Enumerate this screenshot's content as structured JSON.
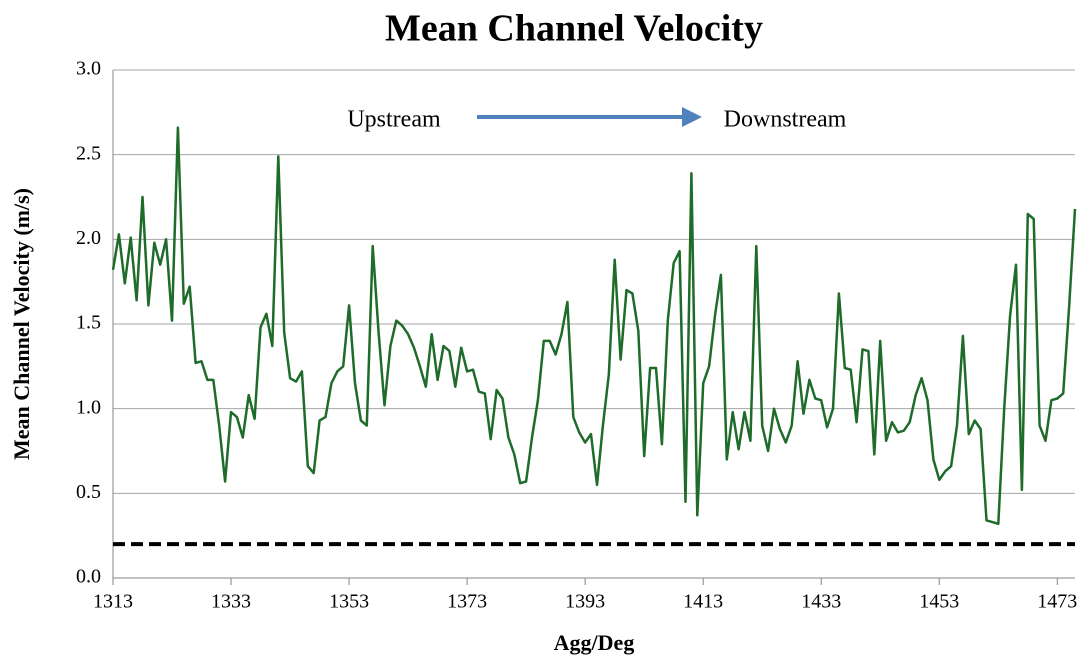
{
  "chart_data": {
    "type": "line",
    "title": "Mean Channel Velocity",
    "xlabel": "Agg/Deg",
    "ylabel": "Mean Channel Velocity (m/s)",
    "annotations": [
      "Upstream",
      "Downstream"
    ],
    "xlim": [
      1313,
      1476
    ],
    "ylim": [
      0,
      3
    ],
    "xticks": [
      1313,
      1333,
      1353,
      1373,
      1393,
      1413,
      1433,
      1453,
      1473
    ],
    "yticks": [
      {
        "value": 0,
        "label": "0.0"
      },
      {
        "value": 0.5,
        "label": "0.5"
      },
      {
        "value": 1,
        "label": "1.0"
      },
      {
        "value": 1.5,
        "label": "1.5"
      },
      {
        "value": 2,
        "label": "2.0"
      },
      {
        "value": 2.5,
        "label": "2.5"
      },
      {
        "value": 3,
        "label": "3.0"
      }
    ],
    "grid": true,
    "hlines": [
      {
        "value": 0.2,
        "color": "#000000",
        "dash": true
      }
    ],
    "x": [
      1313,
      1314,
      1315,
      1316,
      1317,
      1318,
      1319,
      1320,
      1321,
      1322,
      1323,
      1324,
      1325,
      1326,
      1327,
      1328,
      1329,
      1330,
      1331,
      1332,
      1333,
      1334,
      1335,
      1336,
      1337,
      1338,
      1339,
      1340,
      1341,
      1342,
      1343,
      1344,
      1345,
      1346,
      1347,
      1348,
      1349,
      1350,
      1351,
      1352,
      1353,
      1354,
      1355,
      1356,
      1357,
      1358,
      1359,
      1360,
      1361,
      1362,
      1363,
      1364,
      1365,
      1366,
      1367,
      1368,
      1369,
      1370,
      1371,
      1372,
      1373,
      1374,
      1375,
      1376,
      1377,
      1378,
      1379,
      1380,
      1381,
      1382,
      1383,
      1384,
      1385,
      1386,
      1387,
      1388,
      1389,
      1390,
      1391,
      1392,
      1393,
      1394,
      1395,
      1396,
      1397,
      1398,
      1399,
      1400,
      1401,
      1402,
      1403,
      1404,
      1405,
      1406,
      1407,
      1408,
      1409,
      1410,
      1411,
      1412,
      1413,
      1414,
      1415,
      1416,
      1417,
      1418,
      1419,
      1420,
      1421,
      1422,
      1423,
      1424,
      1425,
      1426,
      1427,
      1428,
      1429,
      1430,
      1431,
      1432,
      1433,
      1434,
      1435,
      1436,
      1437,
      1438,
      1439,
      1440,
      1441,
      1442,
      1443,
      1444,
      1445,
      1446,
      1447,
      1448,
      1449,
      1450,
      1451,
      1452,
      1453,
      1454,
      1455,
      1456,
      1457,
      1458,
      1459,
      1460,
      1461,
      1462,
      1463,
      1464,
      1465,
      1466,
      1467,
      1468,
      1469,
      1470,
      1471,
      1472,
      1473,
      1474,
      1475,
      1476
    ],
    "series": [
      {
        "color": "#1e6b2a",
        "values": [
          1.82,
          2.03,
          1.74,
          2.01,
          1.64,
          2.25,
          1.61,
          1.98,
          1.85,
          2.0,
          1.52,
          2.66,
          1.62,
          1.72,
          1.27,
          1.28,
          1.17,
          1.17,
          0.9,
          0.57,
          0.98,
          0.95,
          0.83,
          1.08,
          0.94,
          1.48,
          1.56,
          1.37,
          2.49,
          1.45,
          1.18,
          1.16,
          1.22,
          0.66,
          0.62,
          0.93,
          0.95,
          1.15,
          1.22,
          1.25,
          1.61,
          1.15,
          0.93,
          0.9,
          1.96,
          1.45,
          1.02,
          1.37,
          1.52,
          1.49,
          1.44,
          1.36,
          1.25,
          1.13,
          1.44,
          1.17,
          1.37,
          1.34,
          1.13,
          1.36,
          1.22,
          1.23,
          1.1,
          1.09,
          0.82,
          1.11,
          1.06,
          0.83,
          0.73,
          0.56,
          0.57,
          0.83,
          1.05,
          1.4,
          1.4,
          1.32,
          1.44,
          1.63,
          0.95,
          0.86,
          0.8,
          0.85,
          0.55,
          0.9,
          1.2,
          1.88,
          1.29,
          1.7,
          1.68,
          1.46,
          0.72,
          1.24,
          1.24,
          0.79,
          1.52,
          1.86,
          1.93,
          0.45,
          2.39,
          0.37,
          1.15,
          1.25,
          1.55,
          1.79,
          0.7,
          0.98,
          0.76,
          0.98,
          0.81,
          1.96,
          0.9,
          0.75,
          1.0,
          0.88,
          0.8,
          0.9,
          1.28,
          0.97,
          1.17,
          1.06,
          1.05,
          0.89,
          1.0,
          1.68,
          1.24,
          1.23,
          0.92,
          1.35,
          1.34,
          0.73,
          1.4,
          0.81,
          0.92,
          0.86,
          0.87,
          0.92,
          1.08,
          1.18,
          1.05,
          0.7,
          0.58,
          0.63,
          0.66,
          0.9,
          1.43,
          0.85,
          0.93,
          0.88,
          0.34,
          0.33,
          0.32,
          1.0,
          1.55,
          1.85,
          0.52,
          2.15,
          2.12,
          0.9,
          0.81,
          1.05,
          1.06,
          1.09,
          1.6,
          2.18
        ]
      }
    ]
  }
}
